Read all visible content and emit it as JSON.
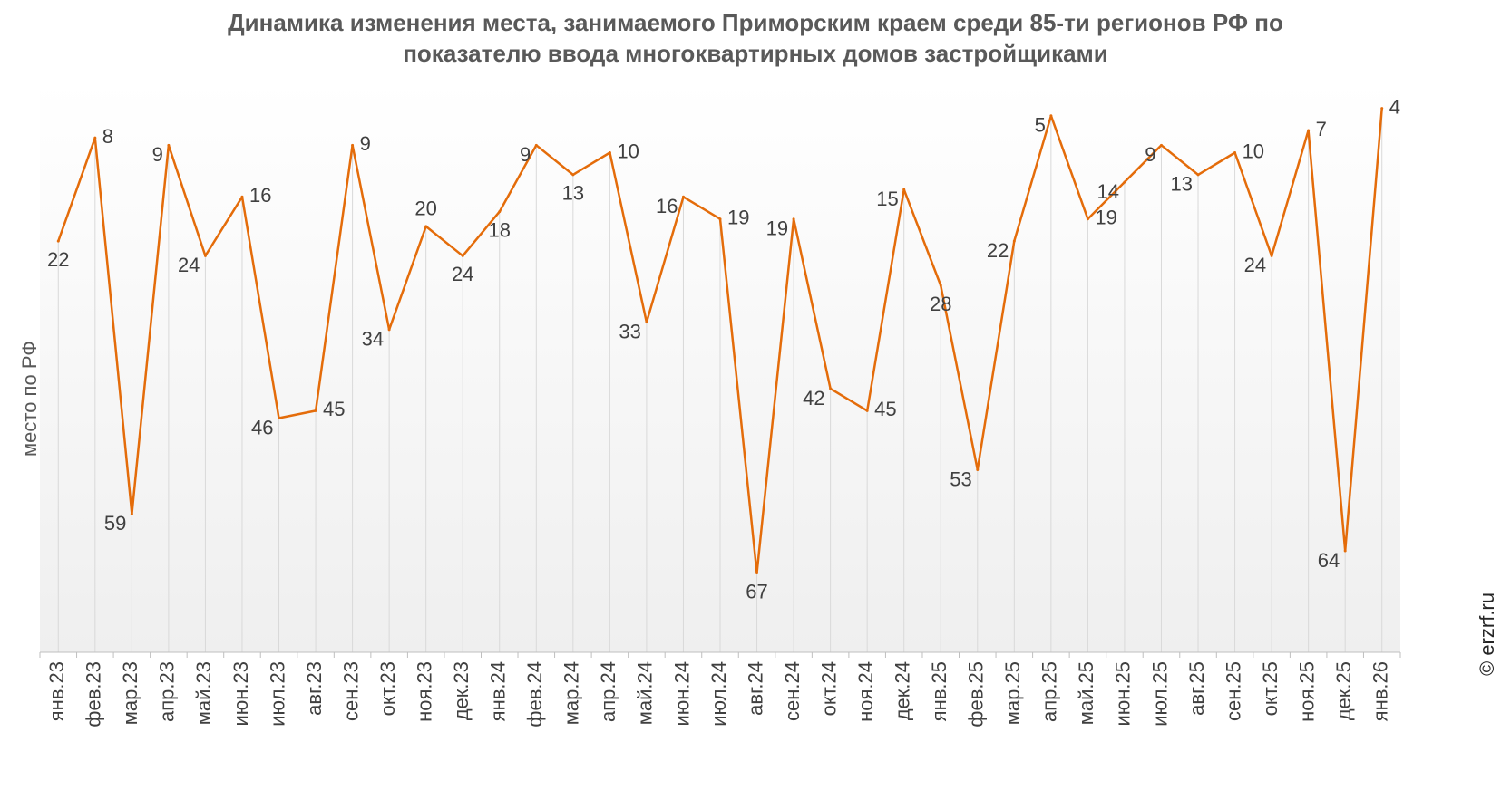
{
  "title_line1": "Динамика изменения места, занимаемого Приморским краем среди 85-ти регионов РФ по",
  "title_line2": "показателю ввода многоквартирных домов застройщиками",
  "copyright": "© erzrf.ru",
  "chart_data": {
    "type": "line",
    "title": "Динамика изменения места, занимаемого Приморским краем среди 85-ти регионов РФ по показателю ввода многоквартирных домов застройщиками",
    "xlabel": "",
    "ylabel": "место по РФ",
    "y_reversed": true,
    "ylim": [
      1,
      85
    ],
    "grid": "vertical drop lines",
    "line_color": "#E46C0A",
    "categories": [
      "янв.23",
      "фев.23",
      "мар.23",
      "апр.23",
      "май.23",
      "июн.23",
      "июл.23",
      "авг.23",
      "сен.23",
      "окт.23",
      "ноя.23",
      "дек.23",
      "янв.24",
      "фев.24",
      "мар.24",
      "апр.24",
      "май.24",
      "июн.24",
      "июл.24",
      "авг.24",
      "сен.24",
      "окт.24",
      "ноя.24",
      "дек.24",
      "янв.25",
      "фев.25",
      "мар.25",
      "апр.25",
      "май.25",
      "июн.25",
      "июл.25",
      "авг.25",
      "сен.25",
      "окт.25",
      "ноя.25",
      "дек.25",
      "янв.26"
    ],
    "values": [
      22,
      8,
      59,
      9,
      24,
      16,
      46,
      45,
      9,
      34,
      20,
      24,
      18,
      9,
      13,
      10,
      33,
      16,
      19,
      67,
      19,
      42,
      45,
      15,
      28,
      53,
      22,
      5,
      19,
      14,
      9,
      13,
      10,
      24,
      7,
      64,
      4
    ],
    "label_side": [
      "b",
      "r",
      "l",
      "l",
      "l",
      "r",
      "l",
      "r",
      "r",
      "l",
      "t",
      "b",
      "b",
      "l",
      "b",
      "r",
      "l",
      "l",
      "r",
      "b",
      "l",
      "l",
      "r",
      "l",
      "b",
      "l",
      "l",
      "l",
      "r",
      "l",
      "l",
      "l",
      "r",
      "l",
      "r",
      "l",
      "r"
    ]
  }
}
